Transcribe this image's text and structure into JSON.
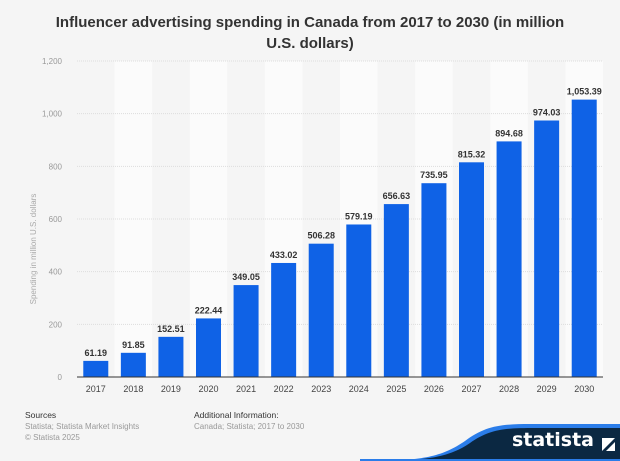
{
  "chart_data": {
    "type": "bar",
    "title": "Influencer advertising spending in Canada from 2017 to 2030 (in million U.S. dollars)",
    "xlabel": "",
    "ylabel": "Spending in million U.S. dollars",
    "categories": [
      "2017",
      "2018",
      "2019",
      "2020",
      "2021",
      "2022",
      "2023",
      "2024",
      "2025",
      "2026",
      "2027",
      "2028",
      "2029",
      "2030"
    ],
    "values": [
      61.19,
      91.85,
      152.51,
      222.44,
      349.05,
      433.02,
      506.28,
      579.19,
      656.63,
      735.95,
      815.32,
      894.68,
      974.03,
      1053.39
    ],
    "labels": [
      "61.19",
      "91.85",
      "152.51",
      "222.44",
      "349.05",
      "433.02",
      "506.28",
      "579.19",
      "656.63",
      "735.95",
      "815.32",
      "894.68",
      "974.03",
      "1,053.39"
    ],
    "ylim": [
      0,
      1200
    ],
    "yticks": [
      "0",
      "200",
      "400",
      "600",
      "800",
      "1,000",
      "1,200"
    ],
    "grid": true,
    "bar_color": "#0f62e6"
  },
  "footer": {
    "sources_heading": "Sources",
    "sources_text": "Statista; Statista Market Insights",
    "copyright": "© Statista 2025",
    "info_heading": "Additional Information:",
    "info_text": "Canada; Statista; 2017 to 2030"
  },
  "brand": {
    "name": "statista",
    "dark": "#0b2842",
    "accent": "#2b7de9"
  }
}
